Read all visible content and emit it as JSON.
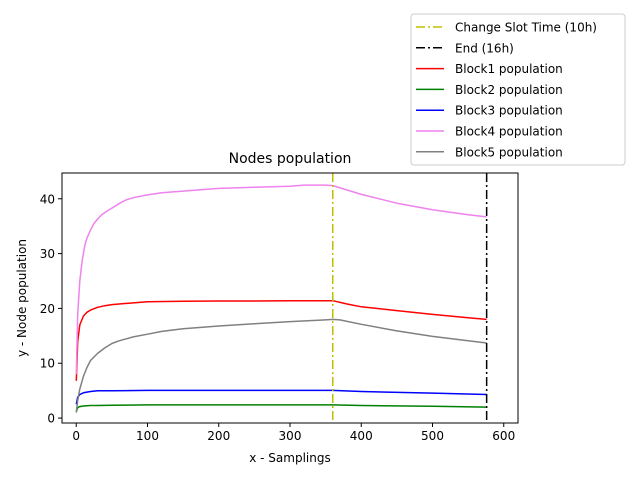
{
  "chart_data": {
    "type": "line",
    "title": "Nodes population",
    "xlabel": "x - Samplings",
    "ylabel": "y - Node population",
    "xlim": [
      -20,
      620
    ],
    "ylim": [
      -0.9,
      44.7
    ],
    "xticks": [
      0,
      100,
      200,
      300,
      400,
      500,
      600
    ],
    "yticks": [
      0,
      10,
      20,
      30,
      40
    ],
    "grid": false,
    "legend_position": "top-right",
    "vlines": [
      {
        "name": "Change Slot Time (10h)",
        "x": 360,
        "color": "#bfbf00",
        "style": "dashdot"
      },
      {
        "name": "End (16h)",
        "x": 576,
        "color": "#000000",
        "style": "dashdot"
      }
    ],
    "series": [
      {
        "name": "Block1 population",
        "color": "#ff0000",
        "x": [
          0,
          2,
          5,
          10,
          15,
          20,
          30,
          40,
          50,
          60,
          80,
          100,
          150,
          200,
          250,
          300,
          350,
          360,
          380,
          400,
          450,
          500,
          550,
          576
        ],
        "y": [
          6.8,
          14,
          17,
          18.6,
          19.3,
          19.7,
          20.2,
          20.5,
          20.7,
          20.8,
          21.0,
          21.2,
          21.3,
          21.35,
          21.35,
          21.4,
          21.4,
          21.4,
          20.8,
          20.3,
          19.6,
          18.9,
          18.3,
          18.0
        ]
      },
      {
        "name": "Block2 population",
        "color": "#008000",
        "x": [
          0,
          2,
          5,
          10,
          20,
          30,
          50,
          100,
          200,
          300,
          360,
          400,
          500,
          576
        ],
        "y": [
          1.2,
          1.9,
          2.1,
          2.2,
          2.3,
          2.3,
          2.35,
          2.4,
          2.4,
          2.4,
          2.4,
          2.3,
          2.15,
          2.0
        ]
      },
      {
        "name": "Block3 population",
        "color": "#0000ff",
        "x": [
          0,
          2,
          5,
          10,
          20,
          30,
          40,
          50,
          100,
          200,
          300,
          360,
          400,
          500,
          576
        ],
        "y": [
          2.5,
          3.8,
          4.3,
          4.6,
          4.85,
          5.0,
          5.0,
          5.0,
          5.05,
          5.05,
          5.05,
          5.05,
          4.85,
          4.55,
          4.3
        ]
      },
      {
        "name": "Block4 population",
        "color": "#ee82ee",
        "x": [
          0,
          2,
          5,
          8,
          12,
          15,
          20,
          25,
          30,
          35,
          40,
          45,
          50,
          60,
          70,
          80,
          100,
          120,
          150,
          200,
          250,
          300,
          320,
          350,
          360,
          380,
          400,
          450,
          500,
          550,
          576
        ],
        "y": [
          8,
          19,
          25,
          28.5,
          31.5,
          32.8,
          34.3,
          35.5,
          36.3,
          37.0,
          37.5,
          37.9,
          38.3,
          39.1,
          39.8,
          40.2,
          40.7,
          41.1,
          41.4,
          41.9,
          42.1,
          42.3,
          42.5,
          42.5,
          42.4,
          41.6,
          40.8,
          39.2,
          38.0,
          37.1,
          36.7
        ]
      },
      {
        "name": "Block5 population",
        "color": "#808080",
        "x": [
          0,
          2,
          5,
          10,
          15,
          20,
          30,
          40,
          50,
          60,
          80,
          100,
          120,
          150,
          200,
          250,
          300,
          350,
          360,
          370,
          400,
          450,
          500,
          550,
          576
        ],
        "y": [
          1.0,
          3.2,
          5.3,
          7.6,
          9.2,
          10.5,
          11.8,
          12.8,
          13.6,
          14.1,
          14.8,
          15.3,
          15.8,
          16.3,
          16.8,
          17.2,
          17.6,
          17.9,
          18.0,
          17.9,
          17.1,
          15.9,
          14.9,
          14.1,
          13.7
        ]
      }
    ]
  }
}
